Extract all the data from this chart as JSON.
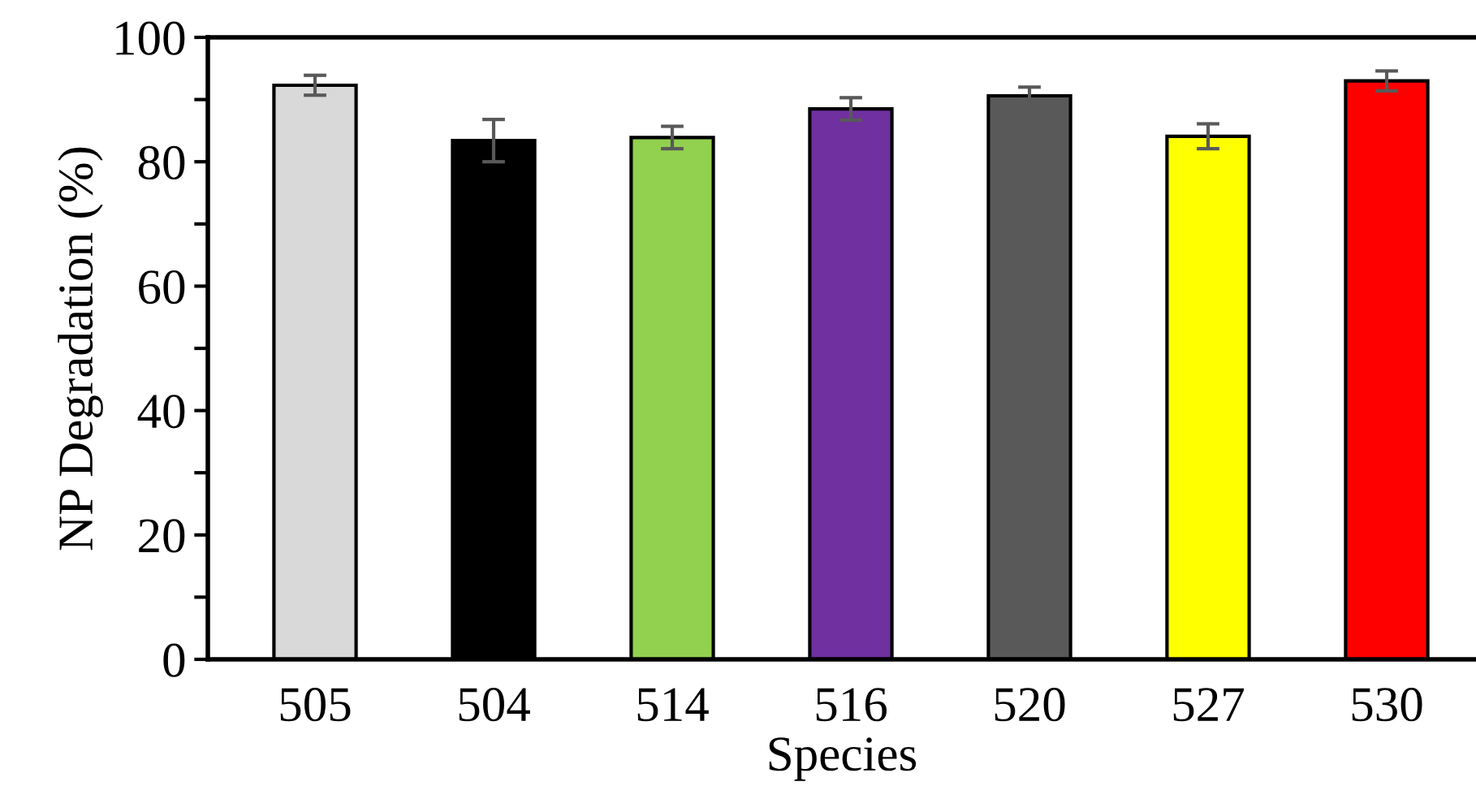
{
  "chart_data": {
    "type": "bar",
    "xlabel": "Species",
    "ylabel": "NP Degradation (%)",
    "categories": [
      "505",
      "504",
      "514",
      "516",
      "520",
      "527",
      "530"
    ],
    "values": [
      92.3,
      83.4,
      83.9,
      88.5,
      90.6,
      84.1,
      93.0
    ],
    "errors": [
      1.6,
      3.4,
      1.8,
      1.8,
      1.4,
      2.0,
      1.6
    ],
    "colors": [
      "#d9d9d9",
      "#000000",
      "#92d050",
      "#7030a0",
      "#595959",
      "#ffff00",
      "#ff0000"
    ],
    "ylim": [
      0,
      100
    ],
    "yticks": [
      0,
      20,
      40,
      60,
      80,
      100
    ],
    "grid": false,
    "legend": false
  }
}
